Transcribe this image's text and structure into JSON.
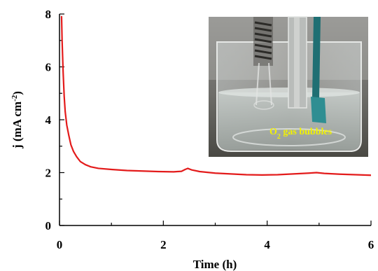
{
  "chart_data": {
    "type": "line",
    "title": "",
    "xlabel": "Time (h)",
    "ylabel": "j (mA cm-2)",
    "ylabel_parts": {
      "main": "j (mA cm",
      "sup": "-2",
      "end": ")"
    },
    "xlim": [
      0,
      6
    ],
    "ylim": [
      0,
      8
    ],
    "x_ticks": [
      0,
      2,
      4,
      6
    ],
    "y_ticks": [
      0,
      2,
      4,
      6,
      8
    ],
    "x_tick_labels": [
      "0",
      "2",
      "4",
      "6"
    ],
    "y_tick_labels": [
      "0",
      "2",
      "4",
      "6",
      "8"
    ],
    "grid": false,
    "series": [
      {
        "color": "#e31b1b",
        "x": [
          0.04,
          0.05,
          0.07,
          0.09,
          0.11,
          0.14,
          0.18,
          0.22,
          0.27,
          0.33,
          0.4,
          0.5,
          0.6,
          0.75,
          1.0,
          1.3,
          1.6,
          1.9,
          2.2,
          2.35,
          2.42,
          2.47,
          2.55,
          2.7,
          3.0,
          3.3,
          3.6,
          3.9,
          4.2,
          4.5,
          4.8,
          4.95,
          5.1,
          5.4,
          5.7,
          6.0
        ],
        "y": [
          7.9,
          7.0,
          5.8,
          4.9,
          4.3,
          3.8,
          3.4,
          3.05,
          2.8,
          2.6,
          2.42,
          2.3,
          2.22,
          2.16,
          2.12,
          2.08,
          2.06,
          2.04,
          2.03,
          2.05,
          2.12,
          2.16,
          2.1,
          2.04,
          1.98,
          1.95,
          1.92,
          1.91,
          1.92,
          1.95,
          1.98,
          2.0,
          1.97,
          1.94,
          1.92,
          1.9
        ]
      }
    ],
    "inset_photo": {
      "annotation_parts": {
        "main": "O",
        "sub": "2",
        "rest": " gas bubbles"
      },
      "annotation_color": "#f2f200"
    }
  }
}
